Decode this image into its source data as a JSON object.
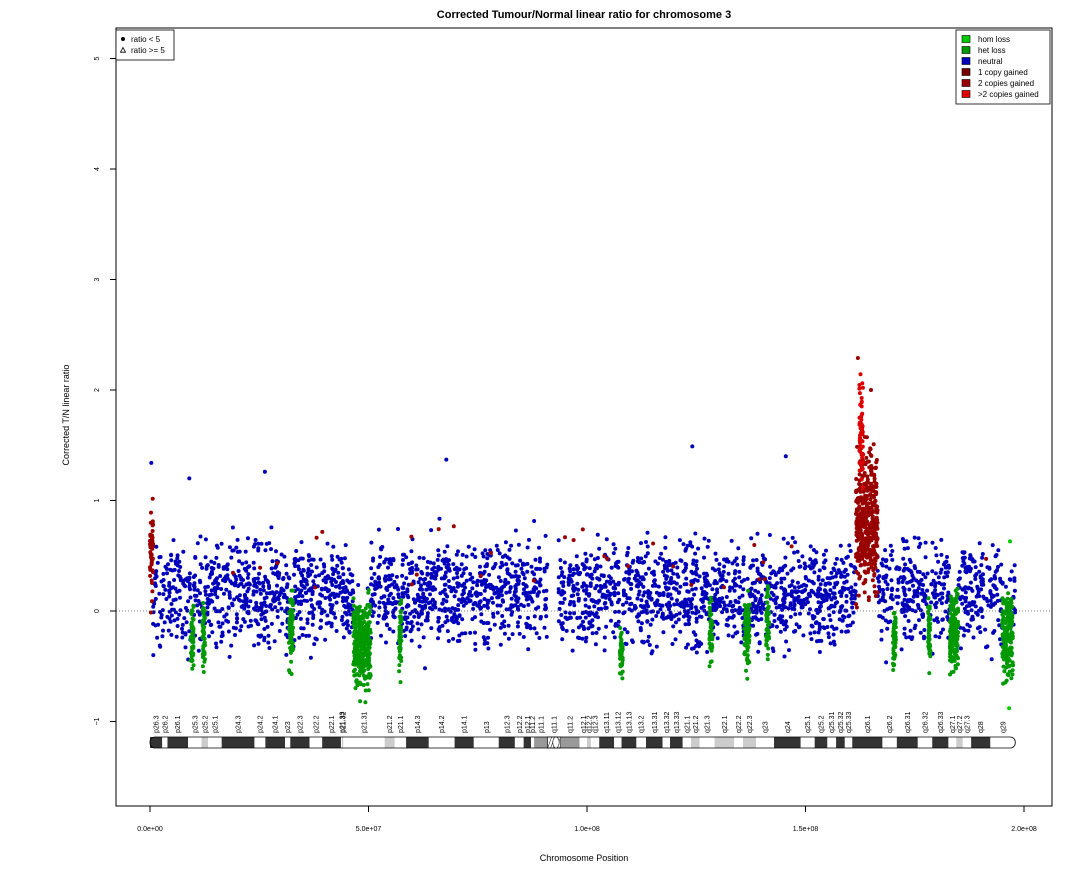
{
  "chart_data": {
    "type": "scatter",
    "title": "Corrected Tumour/Normal linear ratio for chromosome  3",
    "xlabel": "Chromosome Position",
    "ylabel": "Corrected T/N linear ratio",
    "xlim": [
      0,
      200000000
    ],
    "ylim": [
      -1.8,
      5.3
    ],
    "x_ticks": [
      0,
      50000000,
      100000000,
      150000000,
      200000000
    ],
    "x_tick_labels": [
      "0.0e+00",
      "5.0e+07",
      "1.0e+08",
      "1.5e+08",
      "2.0e+08"
    ],
    "y_ticks": [
      -1,
      0,
      1,
      2,
      3,
      4,
      5
    ],
    "y_tick_labels": [
      "−1",
      "0",
      "1",
      "2",
      "3",
      "4",
      "5"
    ],
    "reference_line_y": 0,
    "grid": false,
    "shape_legend": {
      "placement": "top-left",
      "entries": [
        {
          "symbol": "circle",
          "label": "ratio < 5"
        },
        {
          "symbol": "triangle",
          "label": "ratio >= 5"
        }
      ]
    },
    "series": [
      {
        "name": "hom loss",
        "color": "#00cc00"
      },
      {
        "name": "het loss",
        "color": "#009900"
      },
      {
        "name": "neutral",
        "color": "#0000bb"
      },
      {
        "name": "1 copy gained",
        "color": "#770000"
      },
      {
        "name": "2 copies gained",
        "color": "#990000"
      },
      {
        "name": ">2 copies gained",
        "color": "#dd0000"
      }
    ],
    "legend_placement": "top-right",
    "noise_band": {
      "low": -0.45,
      "high": 0.78,
      "centromere_gap": [
        91000000,
        93500000
      ],
      "points_per_mb": 18
    },
    "regions": [
      {
        "label": "het loss",
        "start": 9300000,
        "end": 10000000,
        "mean": -0.2,
        "spread": 0.38,
        "series": 1
      },
      {
        "label": "het loss",
        "start": 12000000,
        "end": 12600000,
        "mean": -0.25,
        "spread": 0.35,
        "series": 1
      },
      {
        "label": "het loss",
        "start": 31800000,
        "end": 32800000,
        "mean": -0.15,
        "spread": 0.45,
        "series": 1
      },
      {
        "label": "het loss",
        "start": 46500000,
        "end": 50500000,
        "mean": -0.3,
        "spread": 0.5,
        "series": 1
      },
      {
        "label": "het loss",
        "start": 57000000,
        "end": 57600000,
        "mean": -0.2,
        "spread": 0.45,
        "series": 1
      },
      {
        "label": "het loss",
        "start": 107500000,
        "end": 108200000,
        "mean": -0.35,
        "spread": 0.25,
        "series": 1
      },
      {
        "label": "het loss",
        "start": 128000000,
        "end": 128700000,
        "mean": -0.2,
        "spread": 0.4,
        "series": 1
      },
      {
        "label": "het loss",
        "start": 136000000,
        "end": 137200000,
        "mean": -0.2,
        "spread": 0.45,
        "series": 1
      },
      {
        "label": "het loss",
        "start": 141000000,
        "end": 141700000,
        "mean": -0.1,
        "spread": 0.45,
        "series": 1
      },
      {
        "label": "het loss",
        "start": 170000000,
        "end": 170700000,
        "mean": -0.25,
        "spread": 0.35,
        "series": 1
      },
      {
        "label": "het loss",
        "start": 178000000,
        "end": 178600000,
        "mean": -0.2,
        "spread": 0.35,
        "series": 1
      },
      {
        "label": "het loss",
        "start": 183000000,
        "end": 185000000,
        "mean": -0.2,
        "spread": 0.45,
        "series": 1
      },
      {
        "label": "het loss",
        "start": 195000000,
        "end": 197500000,
        "mean": -0.2,
        "spread": 0.5,
        "series": 1
      },
      {
        "label": "gain",
        "start": 0,
        "end": 700000,
        "mean": 0.55,
        "spread": 0.55,
        "series": 4
      },
      {
        "label": "gain",
        "start": 161500000,
        "end": 166500000,
        "mean": 0.8,
        "spread": 0.8,
        "series": 4
      },
      {
        "label": "gain",
        "start": 162300000,
        "end": 163200000,
        "mean": 1.6,
        "spread": 0.55,
        "series": 5
      }
    ],
    "outliers": [
      {
        "x": 300000,
        "y": 1.34
      },
      {
        "x": 9000000,
        "y": 1.2
      },
      {
        "x": 26300000,
        "y": 1.26
      },
      {
        "x": 67800000,
        "y": 1.37
      },
      {
        "x": 124100000,
        "y": 1.49
      },
      {
        "x": 145500000,
        "y": 1.4
      },
      {
        "x": 162000000,
        "y": 2.29
      },
      {
        "x": 165000000,
        "y": 2.0
      },
      {
        "x": 196600000,
        "y": -0.88
      },
      {
        "x": 196800000,
        "y": 0.63
      }
    ],
    "ideogram": {
      "chrom_length": 198000000,
      "centromere": [
        90500000,
        93700000
      ],
      "bands": [
        {
          "name": "p26.3",
          "start": 0,
          "end": 2800000,
          "stain": "gpos50"
        },
        {
          "name": "p26.2",
          "start": 2800000,
          "end": 4000000,
          "stain": "gneg"
        },
        {
          "name": "p26.1",
          "start": 4000000,
          "end": 8700000,
          "stain": "gpos50"
        },
        {
          "name": "p25.3",
          "start": 8700000,
          "end": 11800000,
          "stain": "gneg"
        },
        {
          "name": "p25.2",
          "start": 11800000,
          "end": 13300000,
          "stain": "gpos25"
        },
        {
          "name": "p25.1",
          "start": 13300000,
          "end": 16400000,
          "stain": "gneg"
        },
        {
          "name": "p24.3",
          "start": 16400000,
          "end": 23900000,
          "stain": "gpos100"
        },
        {
          "name": "p24.2",
          "start": 23900000,
          "end": 26400000,
          "stain": "gneg"
        },
        {
          "name": "p24.1",
          "start": 26400000,
          "end": 30900000,
          "stain": "gpos75"
        },
        {
          "name": "p23",
          "start": 30900000,
          "end": 32100000,
          "stain": "gneg"
        },
        {
          "name": "p22.3",
          "start": 32100000,
          "end": 36500000,
          "stain": "gpos50"
        },
        {
          "name": "p22.2",
          "start": 36500000,
          "end": 39400000,
          "stain": "gneg"
        },
        {
          "name": "p22.1",
          "start": 39400000,
          "end": 43700000,
          "stain": "gpos75"
        },
        {
          "name": "p21.33",
          "start": 43700000,
          "end": 44100000,
          "stain": "gneg"
        },
        {
          "name": "p21.32",
          "start": 44100000,
          "end": 44200000,
          "stain": "gpos50"
        },
        {
          "name": "p21.31",
          "start": 44200000,
          "end": 53700000,
          "stain": "gneg"
        },
        {
          "name": "p21.2",
          "start": 53700000,
          "end": 56000000,
          "stain": "gpos25"
        },
        {
          "name": "p21.1",
          "start": 56000000,
          "end": 58600000,
          "stain": "gneg"
        },
        {
          "name": "p14.3",
          "start": 58600000,
          "end": 63800000,
          "stain": "gpos50"
        },
        {
          "name": "p14.2",
          "start": 63800000,
          "end": 69700000,
          "stain": "gneg"
        },
        {
          "name": "p14.1",
          "start": 69700000,
          "end": 74100000,
          "stain": "gpos50"
        },
        {
          "name": "p13",
          "start": 74100000,
          "end": 79800000,
          "stain": "gneg"
        },
        {
          "name": "p12.3",
          "start": 79800000,
          "end": 83500000,
          "stain": "gpos75"
        },
        {
          "name": "p12.2",
          "start": 83500000,
          "end": 85500000,
          "stain": "gneg"
        },
        {
          "name": "p12.1",
          "start": 85500000,
          "end": 87200000,
          "stain": "gpos75"
        },
        {
          "name": "p11.2",
          "start": 87200000,
          "end": 87900000,
          "stain": "gneg"
        },
        {
          "name": "p11.1",
          "start": 87900000,
          "end": 91000000,
          "stain": "gvar"
        },
        {
          "name": "q11.1",
          "start": 91000000,
          "end": 93900000,
          "stain": "acen"
        },
        {
          "name": "q11.2",
          "start": 93900000,
          "end": 98300000,
          "stain": "gvar"
        },
        {
          "name": "q12.1",
          "start": 98300000,
          "end": 100000000,
          "stain": "gneg"
        },
        {
          "name": "q12.2",
          "start": 100000000,
          "end": 100900000,
          "stain": "gpos25"
        },
        {
          "name": "q12.3",
          "start": 100900000,
          "end": 102800000,
          "stain": "gneg"
        },
        {
          "name": "q13.11",
          "start": 102800000,
          "end": 106200000,
          "stain": "gpos75"
        },
        {
          "name": "q13.12",
          "start": 106200000,
          "end": 107900000,
          "stain": "gneg"
        },
        {
          "name": "q13.13",
          "start": 107900000,
          "end": 111300000,
          "stain": "gpos50"
        },
        {
          "name": "q13.2",
          "start": 111300000,
          "end": 113500000,
          "stain": "gneg"
        },
        {
          "name": "q13.31",
          "start": 113500000,
          "end": 117300000,
          "stain": "gpos100"
        },
        {
          "name": "q13.32",
          "start": 117300000,
          "end": 119000000,
          "stain": "gneg"
        },
        {
          "name": "q13.33",
          "start": 119000000,
          "end": 121900000,
          "stain": "gpos75"
        },
        {
          "name": "q21.1",
          "start": 121900000,
          "end": 123800000,
          "stain": "gneg"
        },
        {
          "name": "q21.2",
          "start": 123800000,
          "end": 125800000,
          "stain": "gpos25"
        },
        {
          "name": "q21.3",
          "start": 125800000,
          "end": 129200000,
          "stain": "gneg"
        },
        {
          "name": "q22.1",
          "start": 129200000,
          "end": 133700000,
          "stain": "gpos25"
        },
        {
          "name": "q22.2",
          "start": 133700000,
          "end": 135700000,
          "stain": "gneg"
        },
        {
          "name": "q22.3",
          "start": 135700000,
          "end": 138700000,
          "stain": "gpos25"
        },
        {
          "name": "q23",
          "start": 138700000,
          "end": 142800000,
          "stain": "gneg"
        },
        {
          "name": "q24",
          "start": 142800000,
          "end": 148900000,
          "stain": "gpos100"
        },
        {
          "name": "q25.1",
          "start": 148900000,
          "end": 152100000,
          "stain": "gneg"
        },
        {
          "name": "q25.2",
          "start": 152100000,
          "end": 155000000,
          "stain": "gpos50"
        },
        {
          "name": "q25.31",
          "start": 155000000,
          "end": 157000000,
          "stain": "gneg"
        },
        {
          "name": "q25.32",
          "start": 157000000,
          "end": 159000000,
          "stain": "gpos50"
        },
        {
          "name": "q25.33",
          "start": 159000000,
          "end": 160700000,
          "stain": "gneg"
        },
        {
          "name": "q26.1",
          "start": 160700000,
          "end": 167600000,
          "stain": "gpos100"
        },
        {
          "name": "q26.2",
          "start": 167600000,
          "end": 170900000,
          "stain": "gneg"
        },
        {
          "name": "q26.31",
          "start": 170900000,
          "end": 175700000,
          "stain": "gpos75"
        },
        {
          "name": "q26.32",
          "start": 175700000,
          "end": 179000000,
          "stain": "gneg"
        },
        {
          "name": "q26.33",
          "start": 179000000,
          "end": 182700000,
          "stain": "gpos75"
        },
        {
          "name": "q27.1",
          "start": 182700000,
          "end": 184500000,
          "stain": "gneg"
        },
        {
          "name": "q27.2",
          "start": 184500000,
          "end": 186000000,
          "stain": "gpos25"
        },
        {
          "name": "q27.3",
          "start": 186000000,
          "end": 187900000,
          "stain": "gneg"
        },
        {
          "name": "q28",
          "start": 187900000,
          "end": 192300000,
          "stain": "gpos75"
        },
        {
          "name": "q29",
          "start": 192300000,
          "end": 198000000,
          "stain": "gneg"
        }
      ]
    }
  }
}
